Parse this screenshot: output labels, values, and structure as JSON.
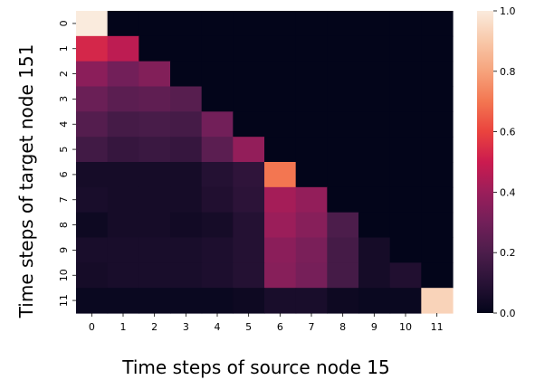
{
  "chart_data": {
    "type": "heatmap",
    "title": "",
    "xlabel": "Time steps of source node 15",
    "ylabel": "Time steps of target  node 151",
    "x_categories": [
      "0",
      "1",
      "2",
      "3",
      "4",
      "5",
      "6",
      "7",
      "8",
      "9",
      "10",
      "11"
    ],
    "y_categories": [
      "0",
      "1",
      "2",
      "3",
      "4",
      "5",
      "6",
      "7",
      "8",
      "9",
      "10",
      "11"
    ],
    "values": [
      [
        1.0,
        0.0,
        0.0,
        0.0,
        0.0,
        0.0,
        0.0,
        0.0,
        0.0,
        0.0,
        0.0,
        0.0
      ],
      [
        0.53,
        0.47,
        0.0,
        0.0,
        0.0,
        0.0,
        0.0,
        0.0,
        0.0,
        0.0,
        0.0,
        0.0
      ],
      [
        0.36,
        0.3,
        0.34,
        0.0,
        0.0,
        0.0,
        0.0,
        0.0,
        0.0,
        0.0,
        0.0,
        0.0
      ],
      [
        0.28,
        0.24,
        0.25,
        0.23,
        0.0,
        0.0,
        0.0,
        0.0,
        0.0,
        0.0,
        0.0,
        0.0
      ],
      [
        0.22,
        0.18,
        0.19,
        0.18,
        0.3,
        0.0,
        0.0,
        0.0,
        0.0,
        0.0,
        0.0,
        0.0
      ],
      [
        0.17,
        0.14,
        0.15,
        0.14,
        0.24,
        0.38,
        0.0,
        0.0,
        0.0,
        0.0,
        0.0,
        0.0
      ],
      [
        0.05,
        0.05,
        0.05,
        0.05,
        0.09,
        0.12,
        0.7,
        0.0,
        0.0,
        0.0,
        0.0,
        0.0
      ],
      [
        0.06,
        0.05,
        0.05,
        0.05,
        0.08,
        0.11,
        0.42,
        0.38,
        0.0,
        0.0,
        0.0,
        0.0
      ],
      [
        0.03,
        0.05,
        0.05,
        0.04,
        0.05,
        0.09,
        0.4,
        0.35,
        0.2,
        0.0,
        0.0,
        0.0
      ],
      [
        0.06,
        0.06,
        0.06,
        0.06,
        0.07,
        0.09,
        0.36,
        0.32,
        0.18,
        0.05,
        0.0,
        0.0
      ],
      [
        0.05,
        0.06,
        0.06,
        0.06,
        0.07,
        0.09,
        0.35,
        0.31,
        0.18,
        0.05,
        0.08,
        0.0
      ],
      [
        0.02,
        0.02,
        0.02,
        0.02,
        0.02,
        0.03,
        0.06,
        0.06,
        0.03,
        0.02,
        0.02,
        0.93
      ]
    ],
    "colorbar": {
      "range": [
        0.0,
        1.0
      ],
      "ticks": [
        "0.0",
        "0.2",
        "0.4",
        "0.6",
        "0.8",
        "1.0"
      ],
      "colormap": "rocket"
    },
    "grid": false
  }
}
